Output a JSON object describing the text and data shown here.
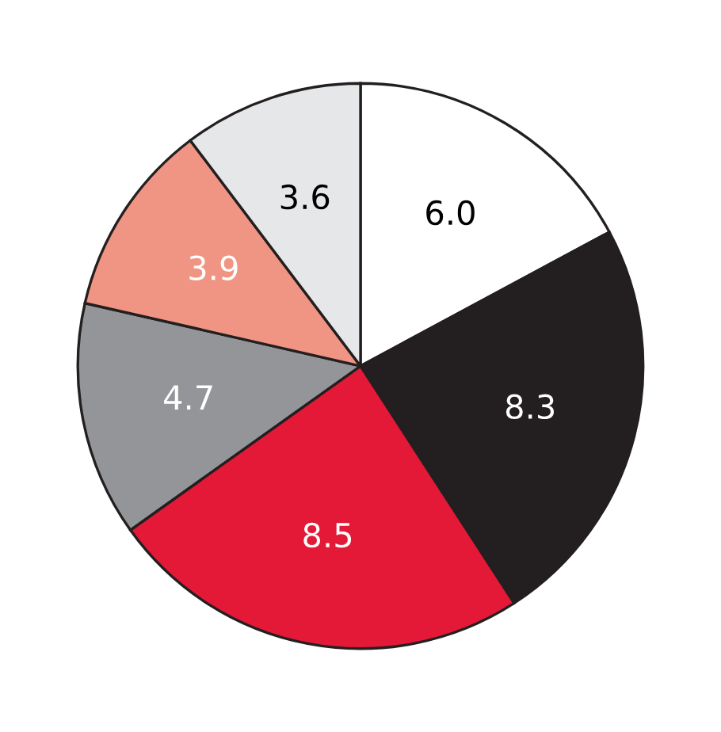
{
  "chart_data": {
    "type": "pie",
    "categories": [
      null,
      null,
      null,
      null,
      null,
      null
    ],
    "values": [
      6.0,
      8.3,
      8.5,
      4.7,
      3.9,
      3.6
    ],
    "colors": [
      "#ffffff",
      "#231f20",
      "#e41937",
      "#939598",
      "#f09483",
      "#e6e7e8"
    ],
    "value_labels": [
      "6.0",
      "8.3",
      "8.5",
      "4.7",
      "3.9",
      "3.6"
    ]
  }
}
